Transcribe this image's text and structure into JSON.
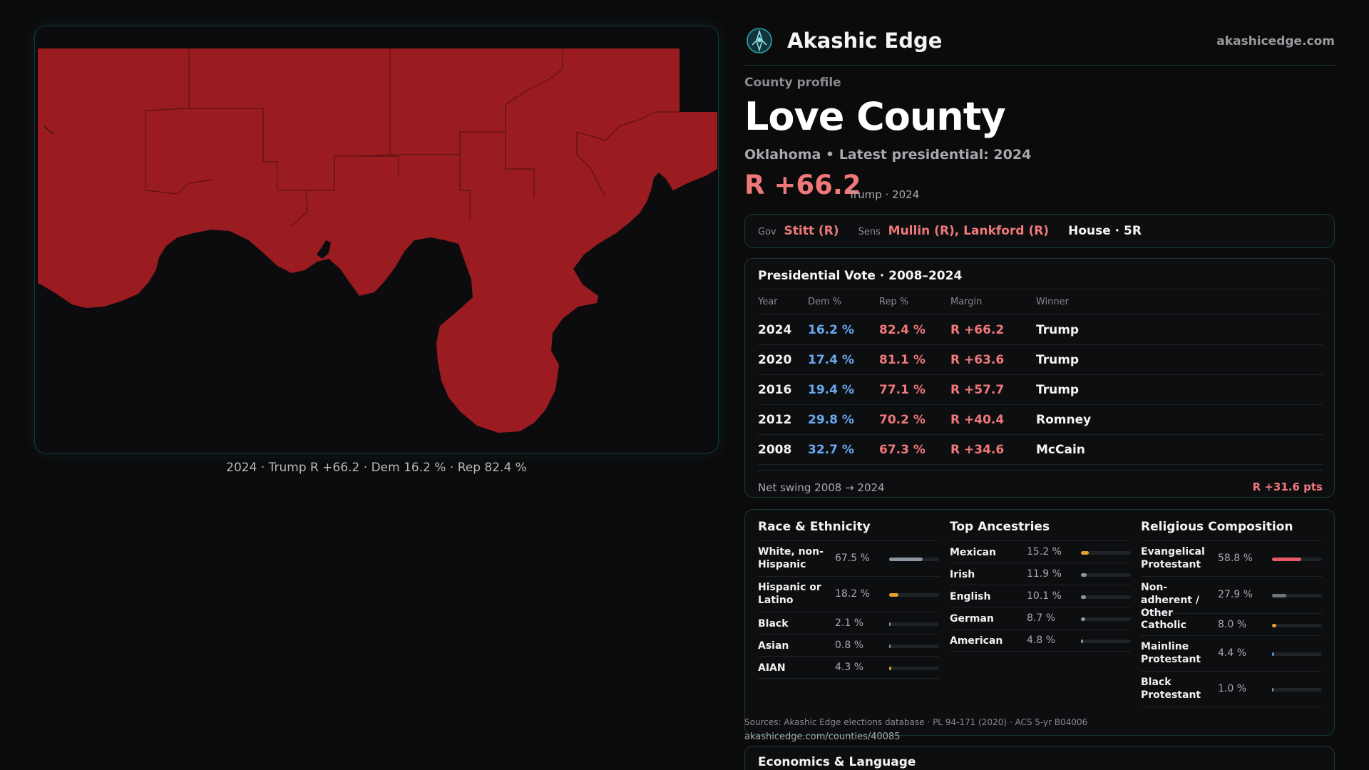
{
  "map": {
    "caption": "2024 · Trump R +66.2 · Dem 16.2 % · Rep 82.4 %",
    "fill_color": "#9b1c20"
  },
  "brand": {
    "name": "Akashic Edge",
    "site": "akashicedge.com",
    "logo_icon": "compass-logo-icon"
  },
  "profile": {
    "eyebrow": "County profile",
    "title": "Love County",
    "subtitle": "Oklahoma • Latest presidential: 2024",
    "margin": "R +66.2",
    "margin_sub": "Trump · 2024"
  },
  "officials": {
    "gov_label": "Gov",
    "gov": "Stitt (R)",
    "sens_label": "Sens",
    "sens": "Mullin (R), Lankford (R)",
    "house": "House · 5R"
  },
  "presidential": {
    "title": "Presidential Vote · 2008–2024",
    "headers": [
      "Year",
      "Dem %",
      "Rep %",
      "Margin",
      "Winner"
    ],
    "rows": [
      {
        "year": "2024",
        "dem": "16.2 %",
        "rep": "82.4 %",
        "margin": "R +66.2",
        "winner": "Trump"
      },
      {
        "year": "2020",
        "dem": "17.4 %",
        "rep": "81.1 %",
        "margin": "R +63.6",
        "winner": "Trump"
      },
      {
        "year": "2016",
        "dem": "19.4 %",
        "rep": "77.1 %",
        "margin": "R +57.7",
        "winner": "Trump"
      },
      {
        "year": "2012",
        "dem": "29.8 %",
        "rep": "70.2 %",
        "margin": "R +40.4",
        "winner": "Romney"
      },
      {
        "year": "2008",
        "dem": "32.7 %",
        "rep": "67.3 %",
        "margin": "R +34.6",
        "winner": "McCain"
      }
    ],
    "swing_label": "Net swing 2008 → 2024",
    "swing_value": "R +31.6 pts"
  },
  "race": {
    "title": "Race & Ethnicity",
    "items": [
      {
        "name": "White, non-Hispanic",
        "pct": "67.5 %",
        "value": 67.5,
        "color": "#8e96a4"
      },
      {
        "name": "Hispanic or Latino",
        "pct": "18.2 %",
        "value": 18.2,
        "color": "#e0a030"
      },
      {
        "name": "Black",
        "pct": "2.1 %",
        "value": 2.1,
        "color": "#8e96a4"
      },
      {
        "name": "Asian",
        "pct": "0.8 %",
        "value": 0.8,
        "color": "#8e96a4"
      },
      {
        "name": "AIAN",
        "pct": "4.3 %",
        "value": 4.3,
        "color": "#e0a030"
      }
    ]
  },
  "ancestry": {
    "title": "Top Ancestries",
    "items": [
      {
        "name": "Mexican",
        "pct": "15.2 %",
        "value": 15.2,
        "color": "#e0a030"
      },
      {
        "name": "Irish",
        "pct": "11.9 %",
        "value": 11.9,
        "color": "#8e96a4"
      },
      {
        "name": "English",
        "pct": "10.1 %",
        "value": 10.1,
        "color": "#8e96a4"
      },
      {
        "name": "German",
        "pct": "8.7 %",
        "value": 8.7,
        "color": "#8e96a4"
      },
      {
        "name": "American",
        "pct": "4.8 %",
        "value": 4.8,
        "color": "#8e96a4"
      }
    ]
  },
  "religion": {
    "title": "Religious Composition",
    "items": [
      {
        "name": "Evangelical Protestant",
        "pct": "58.8 %",
        "value": 58.8,
        "color": "#e85a64"
      },
      {
        "name": "Non-adherent / Other",
        "pct": "27.9 %",
        "value": 27.9,
        "color": "#6e7480"
      },
      {
        "name": "Catholic",
        "pct": "8.0 %",
        "value": 8.0,
        "color": "#e0a030"
      },
      {
        "name": "Mainline Protestant",
        "pct": "4.4 %",
        "value": 4.4,
        "color": "#5a8ae0"
      },
      {
        "name": "Black Protestant",
        "pct": "1.0 %",
        "value": 1.0,
        "color": "#8e96a4"
      }
    ]
  },
  "sources": {
    "text": "Sources: Akashic Edge elections database · PL 94-171 (2020) · ACS 5-yr B04006",
    "url": "akashicedge.com/counties/40085"
  },
  "next_section": {
    "title": "Economics & Language"
  }
}
